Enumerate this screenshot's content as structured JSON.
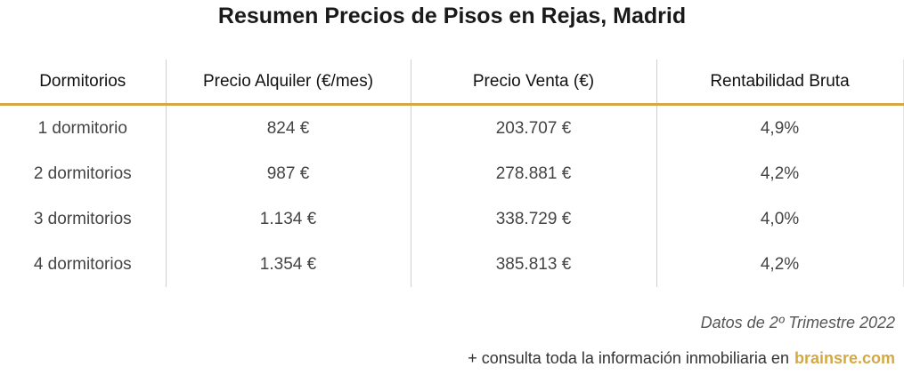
{
  "title": "Resumen Precios de Pisos en Rejas, Madrid",
  "table": {
    "header": [
      "Dormitorios",
      "Precio Alquiler (€/mes)",
      "Precio Venta (€)",
      "Rentabilidad Bruta"
    ],
    "rows": [
      [
        "1 dormitorio",
        "824 €",
        "203.707 €",
        "4,9%"
      ],
      [
        "2 dormitorios",
        "987 €",
        "278.881 €",
        "4,2%"
      ],
      [
        "3 dormitorios",
        "1.134 €",
        "338.729 €",
        "4,0%"
      ],
      [
        "4 dormitorios",
        "1.354 €",
        "385.813 €",
        "4,2%"
      ]
    ]
  },
  "footnote": "Datos de 2º Trimestre 2022",
  "footer": {
    "text": "+ consulta toda la información inmobiliaria en",
    "link": "brainsre.com"
  }
}
